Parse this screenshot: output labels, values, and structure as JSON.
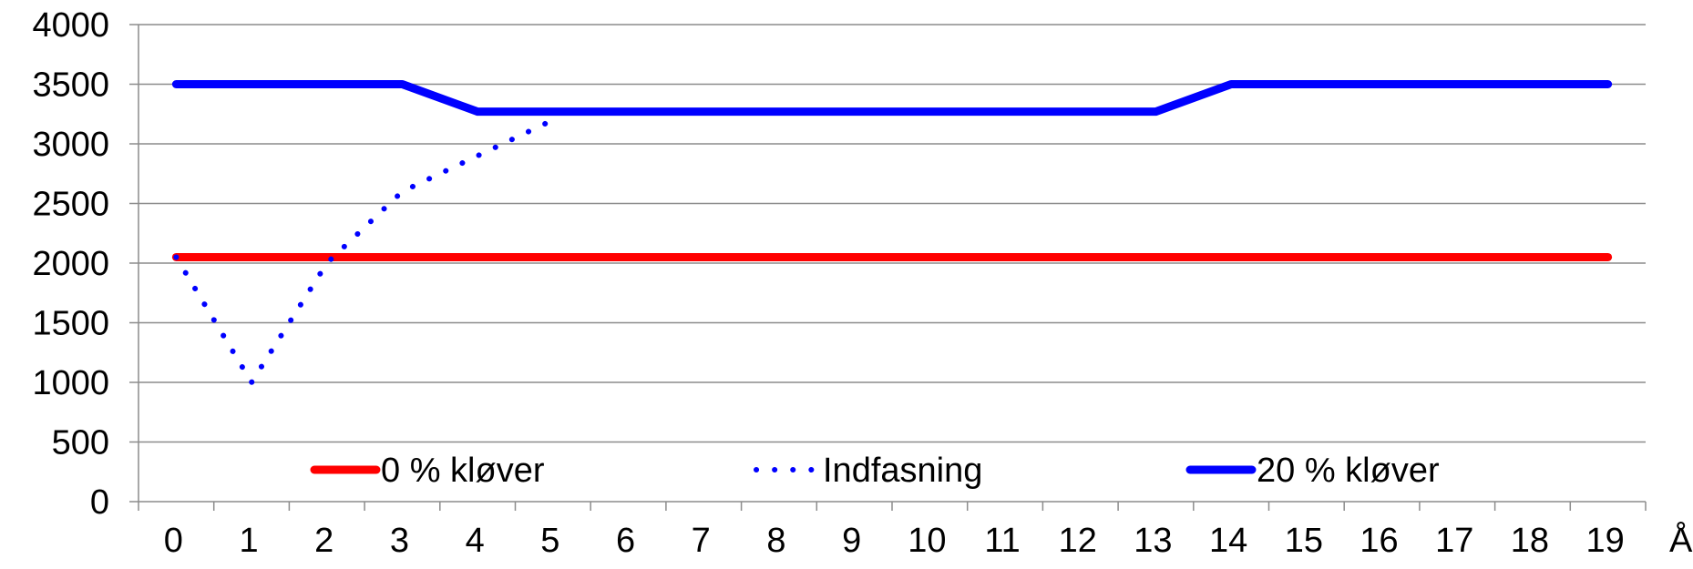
{
  "chart_data": {
    "type": "line",
    "title": "",
    "xlabel": "År",
    "ylabel": "",
    "ylim": [
      0,
      4000
    ],
    "yticks": [
      0,
      500,
      1000,
      1500,
      2000,
      2500,
      3000,
      3500,
      4000
    ],
    "x": [
      0,
      1,
      2,
      3,
      4,
      5,
      6,
      7,
      8,
      9,
      10,
      11,
      12,
      13,
      14,
      15,
      16,
      17,
      18,
      19
    ],
    "grid": "horizontal",
    "legend_position": "bottom-inside",
    "series": [
      {
        "name": "0 % kløver",
        "color": "#ff0000",
        "style": "solid",
        "x": [
          0,
          1,
          2,
          3,
          4,
          5,
          6,
          7,
          8,
          9,
          10,
          11,
          12,
          13,
          14,
          15,
          16,
          17,
          18,
          19
        ],
        "values": [
          2050,
          2050,
          2050,
          2050,
          2050,
          2050,
          2050,
          2050,
          2050,
          2050,
          2050,
          2050,
          2050,
          2050,
          2050,
          2050,
          2050,
          2050,
          2050,
          2050
        ]
      },
      {
        "name": "Indfasning",
        "color": "#0000ff",
        "style": "dotted",
        "x": [
          0,
          1,
          2,
          3,
          4,
          5
        ],
        "values": [
          2050,
          1000,
          2000,
          2600,
          2900,
          3200
        ]
      },
      {
        "name": "20 % kløver",
        "color": "#0000ff",
        "style": "solid",
        "x": [
          0,
          1,
          2,
          3,
          4,
          5,
          6,
          7,
          8,
          9,
          10,
          11,
          12,
          13,
          14,
          15,
          16,
          17,
          18,
          19
        ],
        "values": [
          3500,
          3500,
          3500,
          3500,
          3270,
          3270,
          3270,
          3270,
          3270,
          3270,
          3270,
          3270,
          3270,
          3270,
          3500,
          3500,
          3500,
          3500,
          3500,
          3500
        ]
      }
    ]
  }
}
